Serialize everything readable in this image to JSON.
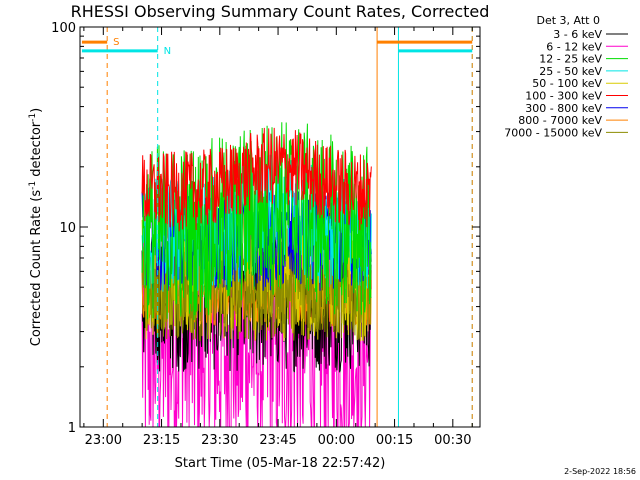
{
  "chart_data": {
    "type": "line",
    "title": "RHESSI Observing Summary Count Rates, Corrected",
    "xlabel": "Start Time (05-Mar-18 22:57:42)",
    "ylabel": "Corrected Count Rate (s",
    "ylabel_sup1": "-1",
    "ylabel_mid": " detector",
    "ylabel_sup2": "-1",
    "ylabel_end": ")",
    "yscale": "log",
    "ylim": [
      1,
      100
    ],
    "xlim_minutes": [
      -6,
      97
    ],
    "x_unit": "minutes after 23:00",
    "x_ticks": [
      {
        "label": "23:00",
        "minutes": 0
      },
      {
        "label": "23:15",
        "minutes": 15
      },
      {
        "label": "23:30",
        "minutes": 30
      },
      {
        "label": "23:45",
        "minutes": 45
      },
      {
        "label": "00:00",
        "minutes": 60
      },
      {
        "label": "00:15",
        "minutes": 75
      },
      {
        "label": "00:30",
        "minutes": 90
      }
    ],
    "y_ticks": [
      {
        "label": "1",
        "value": 1
      },
      {
        "label": "10",
        "value": 10
      },
      {
        "label": "100",
        "value": 100
      }
    ],
    "legend_header": "Det 3, Att 0",
    "legend_position": "right",
    "data_window_minutes": [
      10,
      69
    ],
    "series": [
      {
        "name": "3 - 6 keV",
        "color": "#000000",
        "level": 4.2,
        "spread": 0.35
      },
      {
        "name": "6 - 12 keV",
        "color": "#ff00cc",
        "level": 2.4,
        "spread": 0.6
      },
      {
        "name": "12 - 25 keV",
        "color": "#00dd00",
        "level": 9.5,
        "spread": 0.45
      },
      {
        "name": "25 - 50 keV",
        "color": "#00e5e5",
        "level": 9.0,
        "spread": 0.3
      },
      {
        "name": "50 - 100 keV",
        "color": "#d9cc00",
        "level": 6.0,
        "spread": 0.35
      },
      {
        "name": "100 - 300 keV",
        "color": "#ff0000",
        "level": 15.0,
        "spread": 0.2
      },
      {
        "name": "300 - 800 keV",
        "color": "#0000ee",
        "level": 8.5,
        "spread": 0.25
      },
      {
        "name": "800 - 7000 keV",
        "color": "#ff8000",
        "level": 4.5,
        "spread": 0.15
      },
      {
        "name": "7000 - 15000 keV",
        "color": "#8b8b00",
        "level": 4.8,
        "spread": 0.25
      }
    ],
    "flags": [
      {
        "label": "S",
        "color": "#ff8000",
        "value": 84,
        "start_minutes": -5.5,
        "end_minutes": 1,
        "dashed_at_minutes": 1,
        "second_start_minutes": 70.5,
        "second_end_minutes": 95
      },
      {
        "label": "N",
        "color": "#00e5e5",
        "value": 76,
        "start_minutes": -5.5,
        "end_minutes": 14,
        "dashed_at_minutes": 14,
        "second_start_minutes": 76,
        "second_end_minutes": 95
      }
    ],
    "vertical_lines": [
      {
        "color": "#00e5e5",
        "minutes": -6,
        "style": "solid"
      },
      {
        "color": "#ff8000",
        "minutes": 1,
        "style": "dashed"
      },
      {
        "color": "#00e5e5",
        "minutes": 14,
        "style": "dashed"
      },
      {
        "color": "#ff8000",
        "minutes": 70.5,
        "style": "solid"
      },
      {
        "color": "#00e5e5",
        "minutes": 76,
        "style": "solid"
      },
      {
        "color": "#00e5e5",
        "minutes": 95,
        "style": "dashed"
      },
      {
        "color": "#ff8000",
        "minutes": 95,
        "style": "dashed"
      }
    ],
    "grid": false
  },
  "footer": {
    "timestamp": "2-Sep-2022 18:56"
  }
}
